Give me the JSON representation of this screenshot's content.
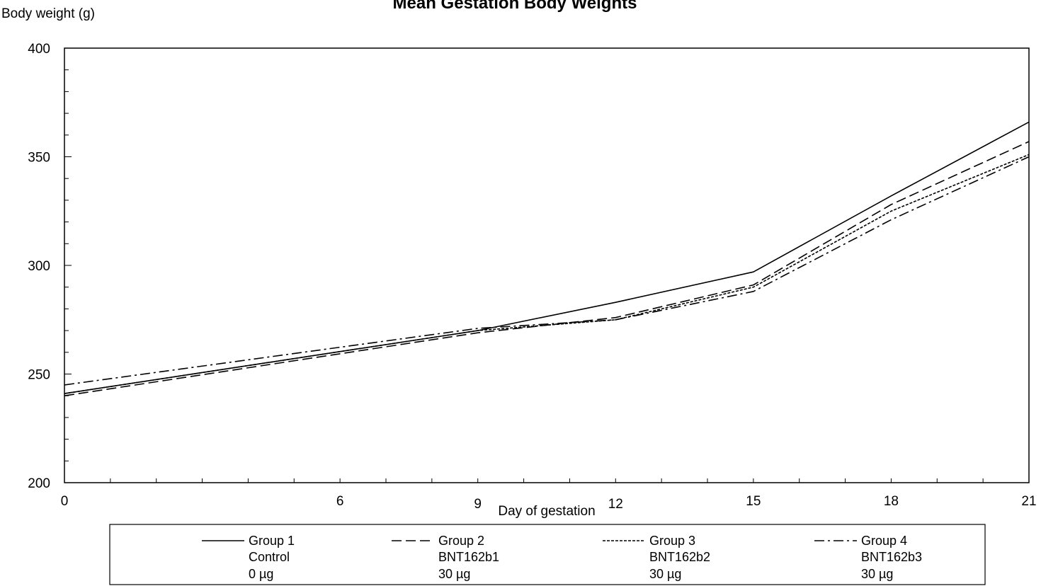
{
  "chart_data": {
    "type": "line",
    "title": "Mean Gestation Body Weights",
    "xlabel": "Day of gestation",
    "ylabel": "Body weight (g)",
    "xlim": [
      0,
      21
    ],
    "ylim": [
      200,
      400
    ],
    "x_ticks": [
      0,
      6,
      9,
      12,
      15,
      18,
      21
    ],
    "y_ticks": [
      200,
      250,
      300,
      350,
      400
    ],
    "grid": false,
    "legend_position": "bottom",
    "x": [
      0,
      9,
      12,
      15,
      18,
      21
    ],
    "series": [
      {
        "name": "Group 1",
        "group_label": "Control",
        "dose": "0 µg",
        "line_style": "solid",
        "values": [
          241,
          270,
          283,
          297,
          332,
          366
        ]
      },
      {
        "name": "Group 2",
        "group_label": "BNT162b1",
        "dose": "30 µg",
        "line_style": "dashed",
        "values": [
          240,
          269,
          276,
          291,
          328,
          357
        ]
      },
      {
        "name": "Group 3",
        "group_label": "BNT162b2",
        "dose": "30 µg",
        "line_style": "dotted",
        "values": [
          241,
          270,
          275,
          290,
          325,
          351
        ]
      },
      {
        "name": "Group 4",
        "group_label": "BNT162b3",
        "dose": "30 µg",
        "line_style": "dash-dot",
        "values": [
          245,
          271,
          275,
          288,
          321,
          350
        ]
      }
    ]
  }
}
